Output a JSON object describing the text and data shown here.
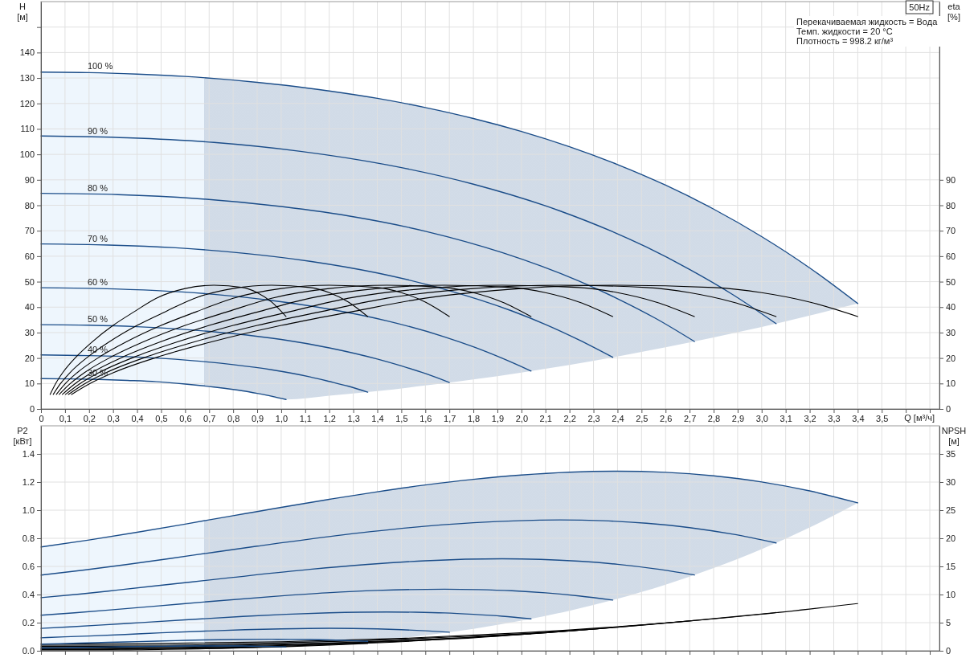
{
  "chart_data": [
    {
      "type": "line",
      "xlabel": "Q [м³/ч]",
      "ylabel": "H [м]",
      "y2label": "eta [%]",
      "annotations": [
        "50Hz",
        "Перекачиваемая жидкость = Вода",
        "Темп. жидкости = 20 °C",
        "Плотность = 998.2 кг/м³"
      ],
      "xlim": [
        0,
        3.74
      ],
      "xticks": [
        0,
        {
          "value": 0.1,
          "label": "0,1"
        },
        {
          "value": 0.2,
          "label": "0,2"
        },
        {
          "value": 0.3,
          "label": "0,3"
        },
        {
          "value": 0.4,
          "label": "0,4"
        },
        {
          "value": 0.5,
          "label": "0,5"
        },
        {
          "value": 0.6,
          "label": "0,6"
        },
        {
          "value": 0.7,
          "label": "0,7"
        },
        {
          "value": 0.8,
          "label": "0,8"
        },
        {
          "value": 0.9,
          "label": "0,9"
        },
        {
          "value": 1,
          "label": "1,0"
        },
        {
          "value": 1.1,
          "label": "1,1"
        },
        {
          "value": 1.2,
          "label": "1,2"
        },
        {
          "value": 1.3,
          "label": "1,3"
        },
        {
          "value": 1.4,
          "label": "1,4"
        },
        {
          "value": 1.5,
          "label": "1,5"
        },
        {
          "value": 1.6,
          "label": "1,6"
        },
        {
          "value": 1.7,
          "label": "1,7"
        },
        {
          "value": 1.8,
          "label": "1,8"
        },
        {
          "value": 1.9,
          "label": "1,9"
        },
        {
          "value": 2,
          "label": "2,0"
        },
        {
          "value": 2.1,
          "label": "2,1"
        },
        {
          "value": 2.2,
          "label": "2,2"
        },
        {
          "value": 2.3,
          "label": "2,3"
        },
        {
          "value": 2.4,
          "label": "2,4"
        },
        {
          "value": 2.5,
          "label": "2,5"
        },
        {
          "value": 2.6,
          "label": "2,6"
        },
        {
          "value": 2.7,
          "label": "2,7"
        },
        {
          "value": 2.8,
          "label": "2,8"
        },
        {
          "value": 2.9,
          "label": "2,9"
        },
        {
          "value": 3,
          "label": "3,0"
        },
        {
          "value": 3.1,
          "label": "3,1"
        },
        {
          "value": 3.2,
          "label": "3,2"
        },
        {
          "value": 3.3,
          "label": "3,3"
        },
        {
          "value": 3.4,
          "label": "3,4"
        },
        {
          "value": 3.5,
          "label": "3,5"
        },
        {
          "value": 3.6,
          "label": null
        },
        {
          "value": 3.7,
          "label": null
        }
      ],
      "ylim": [
        0,
        160
      ],
      "yticks": [
        0,
        10,
        20,
        30,
        40,
        50,
        60,
        70,
        80,
        90,
        100,
        110,
        120,
        130,
        140,
        {
          "value": 150,
          "label": null
        }
      ],
      "y2lim": [
        0,
        160
      ],
      "y2ticks": [
        0,
        10,
        20,
        30,
        40,
        50,
        60,
        70,
        80,
        90
      ],
      "grid": true,
      "bands": [
        {
          "axis": "x",
          "from": 0,
          "to": 0.68,
          "color": "#eef6fd"
        }
      ],
      "series": [
        {
          "name": "100 %",
          "color": "#1b4d89",
          "x": [
            0,
            0.2,
            0.4,
            0.6,
            0.8,
            0.9,
            1.02,
            1.2,
            1.4,
            1.6,
            1.8,
            2.0,
            2.2,
            2.4,
            2.6,
            2.8,
            3.0,
            3.2,
            3.4
          ],
          "values": [
            132.3,
            132.1,
            131.5,
            130.6,
            129.2,
            128.3,
            127.1,
            124.9,
            122.0,
            118.4,
            114.1,
            109.0,
            103.0,
            96.0,
            87.9,
            78.5,
            67.7,
            55.4,
            41.4
          ],
          "upper": [
            132.3,
            132.1,
            131.5,
            130.6,
            129.2,
            128.3,
            127.1,
            124.9,
            122.0,
            118.4,
            114.1,
            109.0,
            103.0,
            96.0,
            87.9,
            78.5,
            67.7,
            55.4,
            41.4
          ],
          "lower": [
            11.9,
            11.7,
            11.1,
            9.8,
            7.6,
            6.1,
            3.7,
            5.2,
            7.0,
            9.2,
            11.6,
            14.3,
            17.3,
            20.6,
            24.2,
            28.1,
            32.2,
            36.7,
            41.4
          ]
        },
        {
          "name": "90 %",
          "color": "#1b4d89",
          "x": [
            0,
            0.36,
            0.72,
            1.08,
            1.44,
            1.8,
            2.16,
            2.52,
            2.7,
            2.88,
            3.06
          ],
          "values": [
            107.2,
            106.5,
            104.7,
            101.2,
            95.9,
            88.3,
            77.8,
            63.6,
            54.8,
            44.9,
            33.5
          ]
        },
        {
          "name": "80 %",
          "color": "#1b4d89",
          "x": [
            0,
            0.32,
            0.64,
            0.96,
            1.28,
            1.6,
            1.92,
            2.24,
            2.4,
            2.56,
            2.72
          ],
          "values": [
            84.7,
            84.2,
            82.7,
            79.9,
            75.8,
            69.8,
            61.4,
            50.2,
            43.3,
            35.5,
            26.5
          ]
        },
        {
          "name": "70 %",
          "color": "#1b4d89",
          "x": [
            0,
            0.28,
            0.56,
            0.84,
            1.12,
            1.4,
            1.68,
            1.96,
            2.1,
            2.24,
            2.38
          ],
          "values": [
            64.8,
            64.4,
            63.3,
            61.2,
            58.0,
            53.4,
            47.0,
            38.5,
            33.2,
            27.1,
            20.3
          ]
        },
        {
          "name": "60 %",
          "color": "#1b4d89",
          "x": [
            0,
            0.24,
            0.48,
            0.72,
            0.96,
            1.2,
            1.44,
            1.68,
            1.8,
            1.92,
            2.04
          ],
          "values": [
            47.6,
            47.3,
            46.5,
            45.0,
            42.6,
            39.2,
            34.6,
            28.3,
            24.4,
            19.9,
            14.9
          ]
        },
        {
          "name": "50 %",
          "color": "#1b4d89",
          "x": [
            0,
            0.2,
            0.4,
            0.6,
            0.8,
            1.0,
            1.2,
            1.4,
            1.5,
            1.6,
            1.7
          ],
          "values": [
            33.1,
            32.9,
            32.3,
            31.2,
            29.6,
            27.3,
            24.0,
            19.6,
            16.9,
            13.9,
            10.4
          ]
        },
        {
          "name": "40 %",
          "color": "#1b4d89",
          "x": [
            0,
            0.16,
            0.32,
            0.48,
            0.64,
            0.8,
            0.96,
            1.12,
            1.2,
            1.28,
            1.36
          ],
          "values": [
            21.2,
            21.0,
            20.7,
            20.0,
            18.9,
            17.4,
            15.4,
            12.6,
            10.8,
            8.9,
            6.6
          ]
        },
        {
          "name": "30 %",
          "color": "#1b4d89",
          "x": [
            0,
            0.12,
            0.24,
            0.36,
            0.48,
            0.6,
            0.72,
            0.84,
            0.9,
            0.96,
            1.02
          ],
          "values": [
            11.9,
            11.8,
            11.6,
            11.2,
            10.7,
            9.8,
            8.6,
            7.1,
            6.1,
            5.0,
            3.7
          ]
        },
        {
          "axis": "y2",
          "color": "#000000",
          "x": [
            0.127,
            0.2,
            0.3,
            0.5,
            0.7,
            1.0,
            1.3,
            1.6,
            2.0,
            2.4,
            2.8,
            3.0,
            3.2,
            3.4
          ],
          "values": [
            5.7,
            9.8,
            14.2,
            20.8,
            26.1,
            32.8,
            38.3,
            43.5,
            47.3,
            48.6,
            47.7,
            45.7,
            42.0,
            36.3
          ]
        },
        {
          "axis": "y2",
          "color": "#000000",
          "x": [
            0.114,
            0.18,
            0.27,
            0.45,
            0.63,
            0.9,
            1.17,
            1.44,
            1.8,
            2.16,
            2.52,
            2.7,
            2.88,
            3.06
          ],
          "values": [
            5.7,
            9.8,
            14.2,
            20.8,
            26.1,
            32.8,
            38.3,
            43.5,
            47.3,
            48.6,
            47.7,
            45.7,
            42.0,
            36.3
          ]
        },
        {
          "axis": "y2",
          "color": "#000000",
          "x": [
            0.102,
            0.16,
            0.24,
            0.4,
            0.56,
            0.8,
            1.04,
            1.28,
            1.6,
            1.92,
            2.24,
            2.4,
            2.56,
            2.72
          ],
          "values": [
            5.7,
            9.8,
            14.2,
            20.8,
            26.1,
            32.8,
            38.3,
            43.5,
            47.3,
            48.6,
            47.7,
            45.7,
            42.0,
            36.3
          ]
        },
        {
          "axis": "y2",
          "color": "#000000",
          "x": [
            0.089,
            0.14,
            0.21,
            0.35,
            0.49,
            0.7,
            0.91,
            1.12,
            1.4,
            1.68,
            1.96,
            2.1,
            2.24,
            2.38
          ],
          "values": [
            5.7,
            9.8,
            14.2,
            20.8,
            26.1,
            32.8,
            38.3,
            43.5,
            47.3,
            48.6,
            47.7,
            45.7,
            42.0,
            36.3
          ]
        },
        {
          "axis": "y2",
          "color": "#000000",
          "x": [
            0.076,
            0.12,
            0.18,
            0.3,
            0.42,
            0.6,
            0.78,
            0.96,
            1.2,
            1.44,
            1.68,
            1.8,
            1.92,
            2.04
          ],
          "values": [
            5.7,
            9.8,
            14.2,
            20.8,
            26.1,
            32.8,
            38.3,
            43.5,
            47.3,
            48.6,
            47.7,
            45.7,
            42.0,
            36.3
          ]
        },
        {
          "axis": "y2",
          "color": "#000000",
          "x": [
            0.064,
            0.1,
            0.15,
            0.25,
            0.35,
            0.5,
            0.65,
            0.8,
            1.0,
            1.2,
            1.4,
            1.5,
            1.6,
            1.7
          ],
          "values": [
            5.7,
            9.8,
            14.2,
            20.8,
            26.1,
            32.8,
            38.3,
            43.5,
            47.3,
            48.6,
            47.7,
            45.7,
            42.0,
            36.3
          ]
        },
        {
          "axis": "y2",
          "color": "#000000",
          "x": [
            0.051,
            0.08,
            0.12,
            0.2,
            0.28,
            0.4,
            0.52,
            0.64,
            0.8,
            0.96,
            1.12,
            1.2,
            1.28,
            1.36
          ],
          "values": [
            5.7,
            9.8,
            14.2,
            20.8,
            26.1,
            32.8,
            38.3,
            43.5,
            47.3,
            48.6,
            47.7,
            45.7,
            42.0,
            36.3
          ]
        },
        {
          "axis": "y2",
          "color": "#000000",
          "x": [
            0.038,
            0.06,
            0.09,
            0.15,
            0.21,
            0.3,
            0.39,
            0.48,
            0.6,
            0.72,
            0.84,
            0.9,
            0.96,
            1.02
          ],
          "values": [
            5.7,
            9.8,
            14.2,
            20.8,
            26.1,
            32.8,
            38.3,
            43.5,
            47.3,
            48.6,
            47.7,
            45.7,
            42.0,
            36.3
          ]
        }
      ]
    },
    {
      "type": "line",
      "ylabel": "P2 [кВт]",
      "y2label": "NPSH [м]",
      "xlim": [
        0,
        3.74
      ],
      "xticks": [
        0,
        0.1,
        0.2,
        0.3,
        0.4,
        0.5,
        0.6,
        0.7,
        0.8,
        0.9,
        1,
        1.1,
        1.2,
        1.3,
        1.4,
        1.5,
        1.6,
        1.7,
        1.8,
        1.9,
        2,
        2.1,
        2.2,
        2.3,
        2.4,
        2.5,
        2.6,
        2.7,
        2.8,
        2.9,
        3,
        3.1,
        3.2,
        3.3,
        3.4,
        3.5,
        3.6,
        3.7
      ],
      "ylim": [
        0,
        1.6
      ],
      "yticks": [
        {
          "value": 0,
          "label": "0.0"
        },
        0.2,
        0.4,
        0.6,
        0.8,
        {
          "value": 1,
          "label": "1.0"
        },
        1.2,
        1.4
      ],
      "y2lim": [
        0,
        40
      ],
      "y2ticks": [
        0,
        5,
        10,
        15,
        20,
        25,
        30,
        35
      ],
      "grid": true,
      "tick_labels": "y",
      "bands": [
        {
          "axis": "x",
          "from": 0,
          "to": 0.68,
          "color": "#eef6fd"
        }
      ],
      "series": [
        {
          "axis": "y2",
          "color": "#000000",
          "x": [
            0,
            0.5,
            1.0,
            1.5,
            2.0,
            2.5,
            3.0,
            3.4
          ],
          "values": [
            1.2,
            1.3,
            1.6,
            2.2,
            3.2,
            4.6,
            6.5,
            8.4
          ]
        },
        {
          "axis": "y2",
          "color": "#000000",
          "x": [
            0,
            0.45,
            0.9,
            1.35,
            1.8,
            2.25,
            2.7,
            3.06
          ],
          "values": [
            1.0,
            1.0,
            1.3,
            1.8,
            2.6,
            3.7,
            5.3,
            6.8
          ]
        },
        {
          "axis": "y2",
          "color": "#000000",
          "x": [
            0,
            0.4,
            0.8,
            1.2,
            1.6,
            2.0,
            2.4,
            2.72
          ],
          "values": [
            0.8,
            0.8,
            1.0,
            1.4,
            2.0,
            2.9,
            4.2,
            5.4
          ]
        },
        {
          "axis": "y2",
          "color": "#000000",
          "x": [
            0,
            0.35,
            0.7,
            1.05,
            1.4,
            1.75,
            2.1,
            2.38
          ],
          "values": [
            0.6,
            0.6,
            0.8,
            1.1,
            1.6,
            2.3,
            3.2,
            4.1
          ]
        },
        {
          "axis": "y2",
          "color": "#000000",
          "x": [
            0,
            0.3,
            0.6,
            0.9,
            1.2,
            1.5,
            1.8,
            2.04
          ],
          "values": [
            0.4,
            0.5,
            0.6,
            0.8,
            1.2,
            1.7,
            2.3,
            3.0
          ]
        },
        {
          "axis": "y2",
          "color": "#000000",
          "x": [
            0,
            0.25,
            0.5,
            0.75,
            1.0,
            1.25,
            1.5,
            1.7
          ],
          "values": [
            0.3,
            0.3,
            0.4,
            0.6,
            0.8,
            1.2,
            1.6,
            2.1
          ]
        },
        {
          "axis": "y2",
          "color": "#000000",
          "x": [
            0,
            0.2,
            0.4,
            0.6,
            0.8,
            1.0,
            1.2,
            1.36
          ],
          "values": [
            0.2,
            0.2,
            0.3,
            0.4,
            0.5,
            0.7,
            1.0,
            1.3
          ]
        },
        {
          "axis": "y2",
          "color": "#000000",
          "x": [
            0,
            0.15,
            0.3,
            0.45,
            0.6,
            0.75,
            0.9,
            1.02
          ],
          "values": [
            0.1,
            0.1,
            0.1,
            0.2,
            0.3,
            0.4,
            0.6,
            0.8
          ]
        },
        {
          "color": "#1b4d89",
          "x": [
            0,
            0.2,
            0.4,
            0.6,
            0.8,
            0.9,
            1.02,
            1.2,
            1.4,
            1.6,
            1.8,
            2.0,
            2.2,
            2.4,
            2.6,
            2.8,
            3.0,
            3.2,
            3.4
          ],
          "values": [
            0.738,
            0.788,
            0.843,
            0.901,
            0.961,
            0.99,
            1.026,
            1.077,
            1.131,
            1.179,
            1.219,
            1.25,
            1.27,
            1.277,
            1.269,
            1.244,
            1.201,
            1.137,
            1.052
          ],
          "upper": [
            0.738,
            0.788,
            0.843,
            0.901,
            0.961,
            0.99,
            1.026,
            1.077,
            1.131,
            1.179,
            1.219,
            1.25,
            1.27,
            1.277,
            1.269,
            1.244,
            1.201,
            1.137,
            1.052
          ],
          "lower": [
            0.02,
            0.025,
            0.03,
            0.034,
            0.034,
            0.032,
            0.028,
            0.046,
            0.073,
            0.11,
            0.156,
            0.214,
            0.285,
            0.37,
            0.47,
            0.588,
            0.723,
            0.877,
            1.052
          ]
        },
        {
          "color": "#1b4d89",
          "x": [
            0,
            0.18,
            0.36,
            0.63,
            0.9,
            1.26,
            1.53,
            1.8,
            2.16,
            2.34,
            2.52,
            2.7,
            2.88,
            3.06
          ],
          "values": [
            0.538,
            0.574,
            0.614,
            0.679,
            0.744,
            0.825,
            0.875,
            0.911,
            0.931,
            0.925,
            0.907,
            0.876,
            0.829,
            0.767
          ]
        },
        {
          "color": "#1b4d89",
          "x": [
            0,
            0.16,
            0.32,
            0.56,
            0.8,
            1.12,
            1.36,
            1.6,
            1.92,
            2.08,
            2.24,
            2.4,
            2.56,
            2.72
          ],
          "values": [
            0.378,
            0.403,
            0.432,
            0.477,
            0.522,
            0.579,
            0.614,
            0.64,
            0.654,
            0.65,
            0.637,
            0.615,
            0.582,
            0.539
          ]
        },
        {
          "color": "#1b4d89",
          "x": [
            0,
            0.14,
            0.28,
            0.49,
            0.7,
            0.98,
            1.19,
            1.4,
            1.68,
            1.82,
            1.96,
            2.1,
            2.24,
            2.38
          ],
          "values": [
            0.253,
            0.27,
            0.289,
            0.319,
            0.35,
            0.388,
            0.412,
            0.429,
            0.438,
            0.435,
            0.427,
            0.412,
            0.39,
            0.361
          ]
        },
        {
          "color": "#1b4d89",
          "x": [
            0,
            0.12,
            0.24,
            0.42,
            0.6,
            0.84,
            1.02,
            1.2,
            1.44,
            1.56,
            1.68,
            1.8,
            1.92,
            2.04
          ],
          "values": [
            0.159,
            0.17,
            0.182,
            0.201,
            0.22,
            0.244,
            0.259,
            0.27,
            0.276,
            0.274,
            0.269,
            0.259,
            0.246,
            0.227
          ]
        },
        {
          "color": "#1b4d89",
          "x": [
            0,
            0.1,
            0.2,
            0.35,
            0.5,
            0.7,
            0.85,
            1.0,
            1.2,
            1.3,
            1.4,
            1.5,
            1.6,
            1.7
          ],
          "values": [
            0.092,
            0.099,
            0.105,
            0.116,
            0.128,
            0.141,
            0.15,
            0.156,
            0.16,
            0.159,
            0.156,
            0.15,
            0.142,
            0.132
          ]
        },
        {
          "color": "#1b4d89",
          "x": [
            0,
            0.08,
            0.16,
            0.28,
            0.4,
            0.56,
            0.68,
            0.8,
            0.96,
            1.04,
            1.12,
            1.2,
            1.28,
            1.36
          ],
          "values": [
            0.047,
            0.05,
            0.054,
            0.06,
            0.065,
            0.072,
            0.077,
            0.08,
            0.082,
            0.081,
            0.08,
            0.077,
            0.073,
            0.067
          ]
        },
        {
          "color": "#1b4d89",
          "x": [
            0,
            0.06,
            0.12,
            0.21,
            0.3,
            0.42,
            0.51,
            0.6,
            0.72,
            0.78,
            0.84,
            0.9,
            0.96,
            1.02
          ],
          "values": [
            0.02,
            0.021,
            0.023,
            0.025,
            0.028,
            0.031,
            0.032,
            0.034,
            0.034,
            0.034,
            0.034,
            0.032,
            0.031,
            0.028
          ]
        }
      ]
    }
  ]
}
